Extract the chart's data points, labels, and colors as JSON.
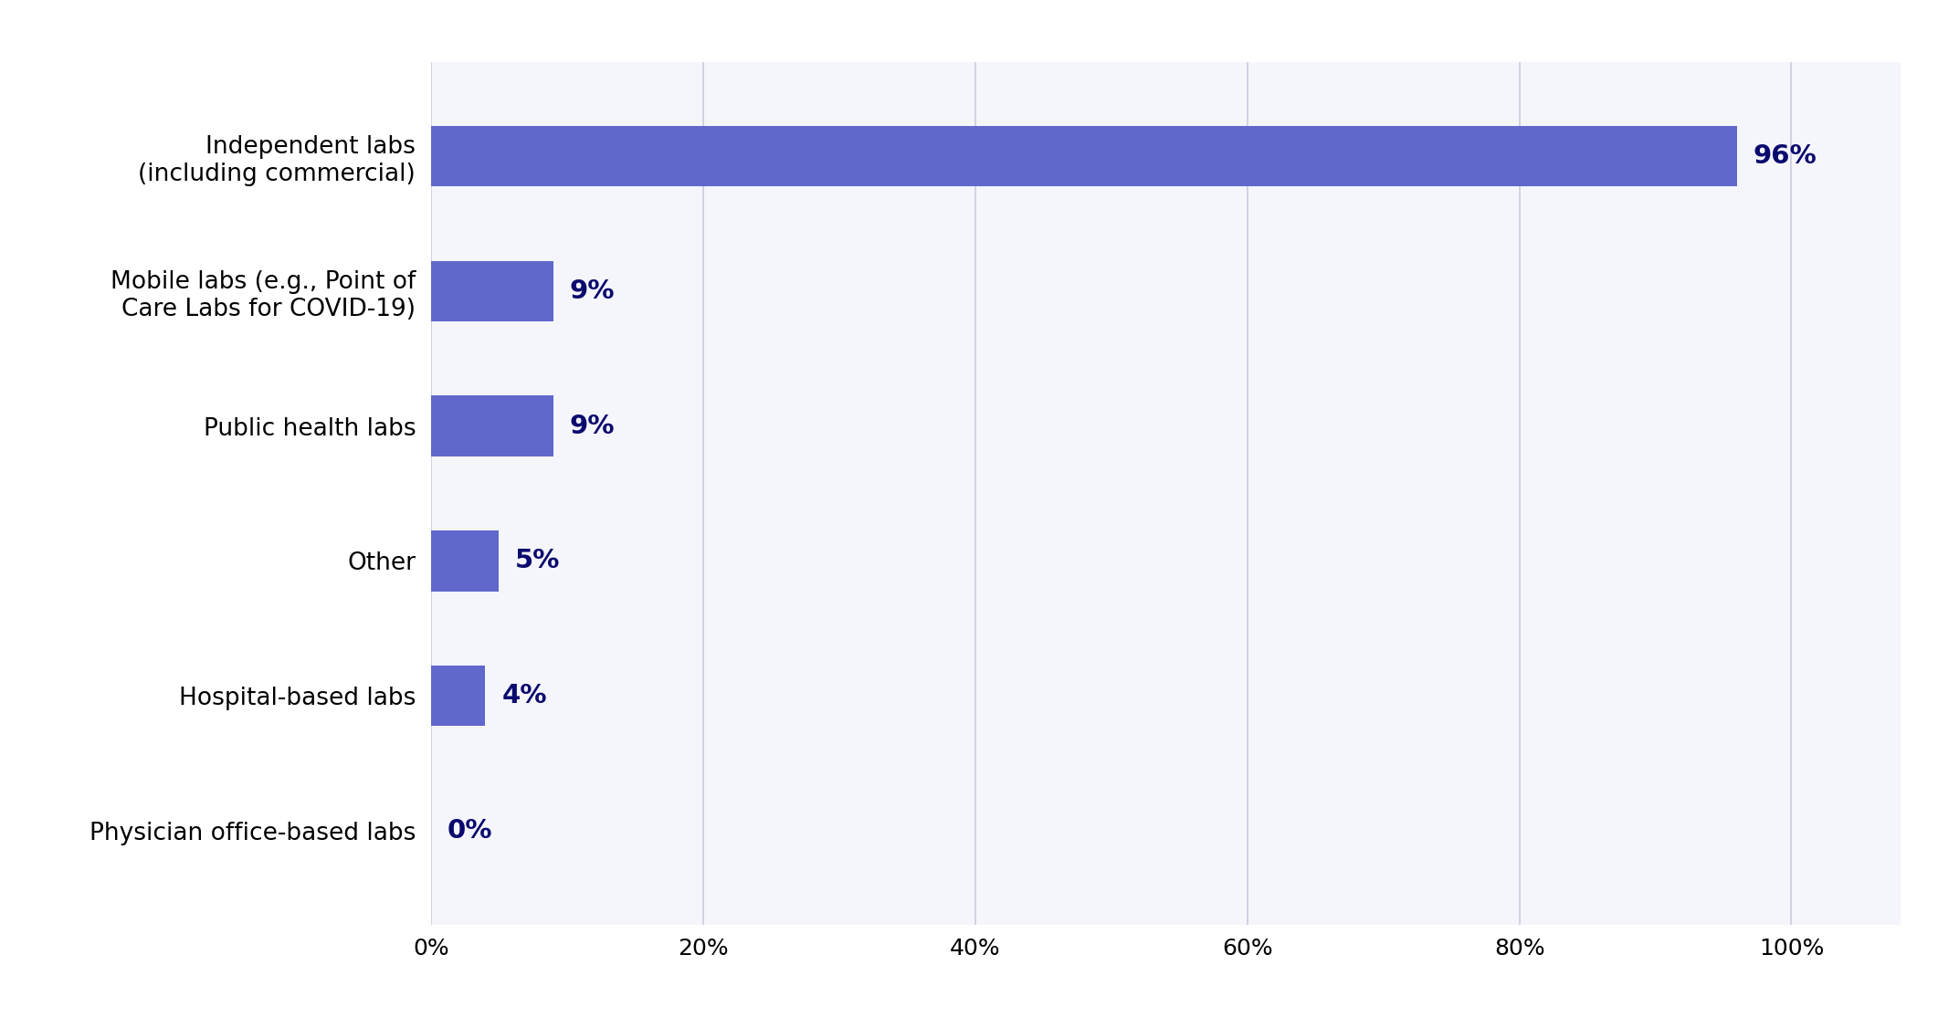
{
  "categories": [
    "Physician office-based labs",
    "Hospital-based labs",
    "Other",
    "Public health labs",
    "Mobile labs (e.g., Point of\nCare Labs for COVID-19)",
    "Independent labs\n(including commercial)"
  ],
  "values": [
    0,
    4,
    5,
    9,
    9,
    96
  ],
  "bar_color": "#6068CC",
  "label_color": "#0A0A6E",
  "background_color": "#FFFFFF",
  "plot_bg_color": "#F5F5FC",
  "bar_height": 0.45,
  "xlim": [
    0,
    108
  ],
  "xticks": [
    0,
    20,
    40,
    60,
    80,
    100
  ],
  "xtick_labels": [
    "0%",
    "20%",
    "40%",
    "60%",
    "80%",
    "100%"
  ],
  "grid_color": "#CCCCDD",
  "label_fontsize": 19,
  "tick_fontsize": 18,
  "value_fontsize": 21,
  "value_fontweight": "bold"
}
